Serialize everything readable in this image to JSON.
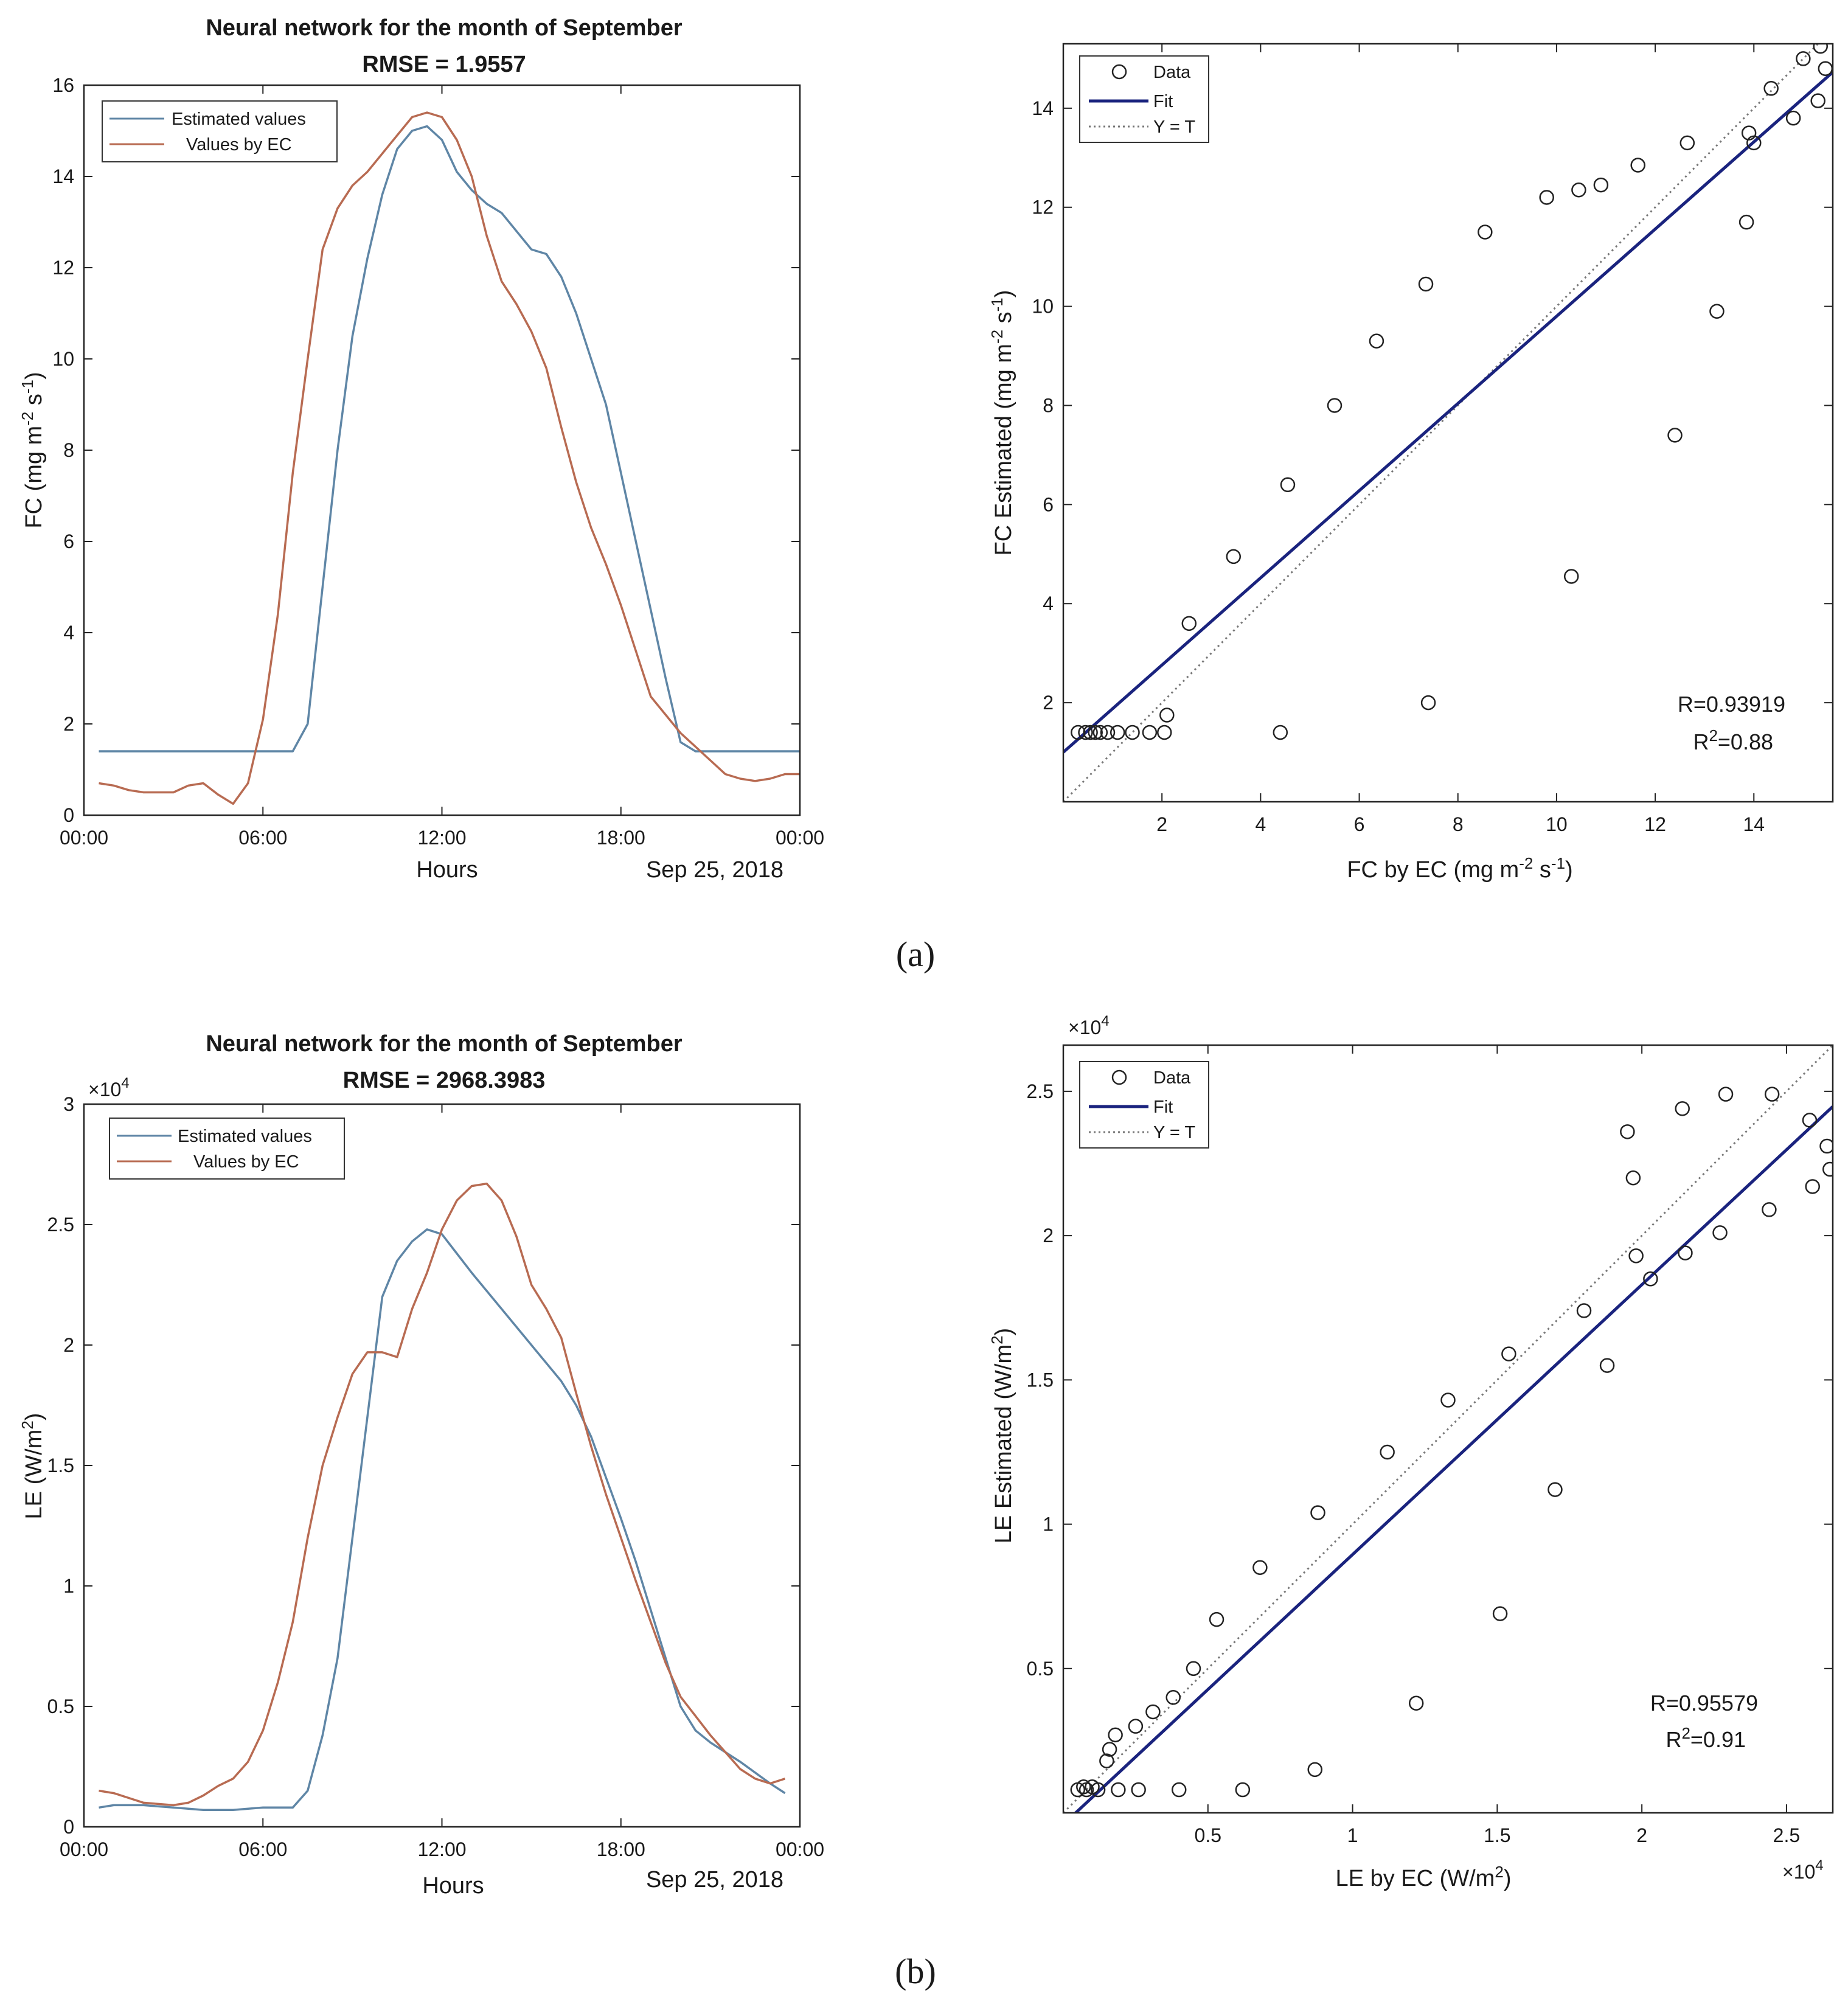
{
  "colors": {
    "estimated": "#5f86a6",
    "ec": "#b86b52",
    "fit": "#1a237e",
    "identity": "#777777",
    "axis": "#222222"
  },
  "panels": {
    "a": "(a)",
    "b": "(b)"
  },
  "chart_data": [
    {
      "id": "a-time",
      "type": "line",
      "title": "Neural network for the month of September",
      "subtitle": "RMSE = 1.9557",
      "xlabel": "Hours",
      "xlabel_note": "Sep 25, 2018",
      "ylabel": "FC (mg m",
      "ylabel_parts": {
        "pre": "FC (mg m",
        "sup1": "-2",
        "mid": " s",
        "sup2": "-1",
        "post": ")"
      },
      "xlim": [
        0,
        24
      ],
      "ylim": [
        0,
        16
      ],
      "x_ticks": [
        0,
        6,
        12,
        18,
        24
      ],
      "x_tick_labels": [
        "00:00",
        "06:00",
        "12:00",
        "18:00",
        "00:00"
      ],
      "y_ticks": [
        0,
        2,
        4,
        6,
        8,
        10,
        12,
        14,
        16
      ],
      "y_tick_labels": [
        "0",
        "2",
        "4",
        "6",
        "8",
        "10",
        "12",
        "14",
        "16"
      ],
      "legend": {
        "position": "top-left",
        "entries": [
          "Estimated values",
          "Values by EC"
        ]
      },
      "series": [
        {
          "name": "Estimated values",
          "color_key": "estimated",
          "x": [
            0.5,
            6.0,
            7.0,
            7.5,
            8.0,
            8.5,
            9.0,
            9.5,
            10.0,
            10.5,
            11.0,
            11.5,
            12.0,
            12.5,
            13.0,
            13.5,
            14.0,
            14.5,
            15.0,
            15.5,
            16.0,
            16.5,
            17.0,
            17.5,
            18.0,
            18.5,
            19.0,
            19.5,
            20.0,
            20.5,
            21.0,
            24.0
          ],
          "y": [
            1.4,
            1.4,
            1.4,
            2.0,
            5.0,
            8.0,
            10.5,
            12.2,
            13.6,
            14.6,
            15.0,
            15.1,
            14.8,
            14.1,
            13.7,
            13.4,
            13.2,
            12.8,
            12.4,
            12.3,
            11.8,
            11.0,
            10.0,
            9.0,
            7.5,
            6.0,
            4.5,
            3.0,
            1.6,
            1.4,
            1.4,
            1.4
          ]
        },
        {
          "name": "Values by EC",
          "color_key": "ec",
          "x": [
            0.5,
            1.0,
            1.5,
            2.0,
            2.5,
            3.0,
            3.5,
            4.0,
            4.5,
            5.0,
            5.5,
            6.0,
            6.5,
            7.0,
            7.5,
            8.0,
            8.5,
            9.0,
            9.5,
            10.0,
            10.5,
            11.0,
            11.5,
            12.0,
            12.5,
            13.0,
            13.5,
            14.0,
            14.5,
            15.0,
            15.5,
            16.0,
            16.5,
            17.0,
            17.5,
            18.0,
            18.5,
            19.0,
            19.5,
            20.0,
            20.5,
            21.0,
            21.5,
            22.0,
            22.5,
            23.0,
            23.5,
            24.0
          ],
          "y": [
            0.7,
            0.65,
            0.55,
            0.5,
            0.5,
            0.5,
            0.65,
            0.7,
            0.45,
            0.25,
            0.7,
            2.1,
            4.4,
            7.5,
            10.0,
            12.4,
            13.3,
            13.8,
            14.1,
            14.5,
            14.9,
            15.3,
            15.4,
            15.3,
            14.8,
            14.0,
            12.7,
            11.7,
            11.2,
            10.6,
            9.8,
            8.5,
            7.3,
            6.3,
            5.5,
            4.6,
            3.6,
            2.6,
            2.2,
            1.8,
            1.5,
            1.2,
            0.9,
            0.8,
            0.75,
            0.8,
            0.9,
            0.9
          ]
        }
      ]
    },
    {
      "id": "a-scatter",
      "type": "scatter",
      "xlabel": "FC by EC",
      "xlabel_parts": {
        "pre": "FC by EC  (mg m",
        "sup1": "-2",
        "mid": " s",
        "sup2": "-1",
        "post": ")"
      },
      "ylabel": "FC Estimated",
      "ylabel_parts": {
        "pre": "FC Estimated  (mg m",
        "sup1": "-2",
        "mid": " s",
        "sup2": "-1",
        "post": ")"
      },
      "xlim": [
        0.0,
        15.6
      ],
      "ylim": [
        0.0,
        15.3
      ],
      "x_ticks": [
        2,
        4,
        6,
        8,
        10,
        12,
        14
      ],
      "x_tick_labels": [
        "2",
        "4",
        "6",
        "8",
        "10",
        "12",
        "14"
      ],
      "y_ticks": [
        2,
        4,
        6,
        8,
        10,
        12,
        14
      ],
      "y_tick_labels": [
        "2",
        "4",
        "6",
        "8",
        "10",
        "12",
        "14"
      ],
      "legend": {
        "position": "top-left",
        "entries": [
          "Data",
          "Fit",
          "Y = T"
        ]
      },
      "annotation": {
        "r": "R=0.93919",
        "r2_pre": "R",
        "r2_sup": "2",
        "r2_post": "=0.88"
      },
      "fit": {
        "slope": 0.88,
        "intercept": 1.0
      },
      "identity": [
        0.0,
        15.6
      ],
      "points": [
        [
          0.3,
          1.4
        ],
        [
          0.45,
          1.4
        ],
        [
          0.55,
          1.4
        ],
        [
          0.65,
          1.4
        ],
        [
          0.75,
          1.4
        ],
        [
          0.9,
          1.4
        ],
        [
          1.1,
          1.4
        ],
        [
          1.4,
          1.4
        ],
        [
          1.75,
          1.4
        ],
        [
          2.05,
          1.4
        ],
        [
          2.1,
          1.75
        ],
        [
          2.55,
          3.6
        ],
        [
          3.45,
          4.95
        ],
        [
          4.4,
          1.4
        ],
        [
          4.55,
          6.4
        ],
        [
          5.5,
          8.0
        ],
        [
          6.35,
          9.3
        ],
        [
          7.35,
          10.45
        ],
        [
          7.4,
          2.0
        ],
        [
          8.55,
          11.5
        ],
        [
          9.8,
          12.2
        ],
        [
          10.3,
          4.55
        ],
        [
          10.45,
          12.35
        ],
        [
          10.9,
          12.45
        ],
        [
          11.65,
          12.85
        ],
        [
          12.4,
          7.4
        ],
        [
          12.65,
          13.3
        ],
        [
          13.25,
          9.9
        ],
        [
          13.85,
          11.7
        ],
        [
          13.9,
          13.5
        ],
        [
          14.0,
          13.3
        ],
        [
          14.35,
          14.4
        ],
        [
          14.8,
          13.8
        ],
        [
          15.0,
          15.0
        ],
        [
          15.3,
          14.15
        ],
        [
          15.35,
          15.25
        ],
        [
          15.45,
          14.8
        ]
      ]
    },
    {
      "id": "b-time",
      "type": "line",
      "title": "Neural network for the month of September",
      "subtitle": "RMSE = 2968.3983",
      "xlabel": "Hours",
      "xlabel_note": "Sep 25, 2018",
      "ylabel": "LE (W/m",
      "ylabel_parts": {
        "pre": "LE (W/m",
        "sup1": "2",
        "post": ")"
      },
      "y_exponent": {
        "base": "×10",
        "sup": "4"
      },
      "xlim": [
        0,
        24
      ],
      "ylim": [
        0,
        3.0
      ],
      "x_ticks": [
        0,
        6,
        12,
        18,
        24
      ],
      "x_tick_labels": [
        "00:00",
        "06:00",
        "12:00",
        "18:00",
        "00:00"
      ],
      "y_ticks": [
        0,
        0.5,
        1.0,
        1.5,
        2.0,
        2.5,
        3.0
      ],
      "y_tick_labels": [
        "0",
        "0.5",
        "1",
        "1.5",
        "2",
        "2.5",
        "3"
      ],
      "legend": {
        "position": "top-left",
        "entries": [
          "Estimated values",
          "Values by EC"
        ]
      },
      "series": [
        {
          "name": "Estimated values",
          "color_key": "estimated",
          "x": [
            0.5,
            1.0,
            2.0,
            3.0,
            4.0,
            5.0,
            6.0,
            7.0,
            7.5,
            8.0,
            8.5,
            9.0,
            9.5,
            10.0,
            10.5,
            11.0,
            11.5,
            12.0,
            12.5,
            13.0,
            14.0,
            15.0,
            16.0,
            16.5,
            17.0,
            17.5,
            18.0,
            18.5,
            19.0,
            19.5,
            20.0,
            20.5,
            21.0,
            22.0,
            23.0,
            23.5
          ],
          "y": [
            0.08,
            0.09,
            0.09,
            0.08,
            0.07,
            0.07,
            0.08,
            0.08,
            0.15,
            0.38,
            0.7,
            1.2,
            1.7,
            2.2,
            2.35,
            2.43,
            2.48,
            2.46,
            2.38,
            2.3,
            2.15,
            2.0,
            1.85,
            1.75,
            1.62,
            1.45,
            1.28,
            1.1,
            0.9,
            0.7,
            0.5,
            0.4,
            0.35,
            0.27,
            0.18,
            0.14
          ]
        },
        {
          "name": "Values by EC",
          "color_key": "ec",
          "x": [
            0.5,
            1.0,
            1.5,
            2.0,
            3.0,
            3.5,
            4.0,
            4.5,
            5.0,
            5.5,
            6.0,
            6.5,
            7.0,
            7.5,
            8.0,
            8.5,
            9.0,
            9.5,
            10.0,
            10.5,
            11.0,
            11.5,
            12.0,
            12.5,
            13.0,
            13.5,
            14.0,
            14.5,
            15.0,
            15.5,
            16.0,
            16.5,
            17.0,
            17.5,
            18.0,
            18.5,
            19.0,
            19.5,
            20.0,
            20.5,
            21.0,
            21.5,
            22.0,
            22.5,
            23.0,
            23.5
          ],
          "y": [
            0.15,
            0.14,
            0.12,
            0.1,
            0.09,
            0.1,
            0.13,
            0.17,
            0.2,
            0.27,
            0.4,
            0.6,
            0.85,
            1.2,
            1.5,
            1.7,
            1.88,
            1.97,
            1.97,
            1.95,
            2.15,
            2.3,
            2.48,
            2.6,
            2.66,
            2.67,
            2.6,
            2.45,
            2.25,
            2.15,
            2.03,
            1.8,
            1.58,
            1.38,
            1.2,
            1.02,
            0.85,
            0.68,
            0.54,
            0.46,
            0.38,
            0.31,
            0.24,
            0.2,
            0.18,
            0.2
          ]
        }
      ]
    },
    {
      "id": "b-scatter",
      "type": "scatter",
      "xlabel": "LE by EC",
      "xlabel_parts": {
        "pre": "LE by EC  (W/m",
        "sup1": "2",
        "post": ")"
      },
      "ylabel": "LE Estimated",
      "ylabel_parts": {
        "pre": "LE Estimated  (W/m",
        "sup1": "2",
        "post": ")"
      },
      "x_exponent": {
        "base": "×10",
        "sup": "4"
      },
      "y_exponent": {
        "base": "×10",
        "sup": "4"
      },
      "xlim": [
        0.0,
        2.66
      ],
      "ylim": [
        0.0,
        2.66
      ],
      "x_ticks": [
        0.5,
        1.0,
        1.5,
        2.0,
        2.5
      ],
      "x_tick_labels": [
        "0.5",
        "1",
        "1.5",
        "2",
        "2.5"
      ],
      "y_ticks": [
        0.5,
        1.0,
        1.5,
        2.0,
        2.5
      ],
      "y_tick_labels": [
        "0.5",
        "1",
        "1.5",
        "2",
        "2.5"
      ],
      "legend": {
        "position": "top-left",
        "entries": [
          "Data",
          "Fit",
          "Y = T"
        ]
      },
      "annotation": {
        "r": "R=0.95579",
        "r2_pre": "R",
        "r2_sup": "2",
        "r2_post": "=0.91"
      },
      "fit": {
        "slope": 0.935,
        "intercept": -0.04
      },
      "identity": [
        0.0,
        2.66
      ],
      "points": [
        [
          0.05,
          0.08
        ],
        [
          0.07,
          0.09
        ],
        [
          0.08,
          0.08
        ],
        [
          0.1,
          0.09
        ],
        [
          0.12,
          0.08
        ],
        [
          0.15,
          0.18
        ],
        [
          0.16,
          0.22
        ],
        [
          0.18,
          0.27
        ],
        [
          0.19,
          0.08
        ],
        [
          0.25,
          0.3
        ],
        [
          0.26,
          0.08
        ],
        [
          0.31,
          0.35
        ],
        [
          0.38,
          0.4
        ],
        [
          0.4,
          0.08
        ],
        [
          0.45,
          0.5
        ],
        [
          0.53,
          0.67
        ],
        [
          0.62,
          0.08
        ],
        [
          0.68,
          0.85
        ],
        [
          0.87,
          0.15
        ],
        [
          0.88,
          1.04
        ],
        [
          1.12,
          1.25
        ],
        [
          1.22,
          0.38
        ],
        [
          1.33,
          1.43
        ],
        [
          1.51,
          0.69
        ],
        [
          1.54,
          1.59
        ],
        [
          1.7,
          1.12
        ],
        [
          1.8,
          1.74
        ],
        [
          1.88,
          1.55
        ],
        [
          1.95,
          2.36
        ],
        [
          1.97,
          2.2
        ],
        [
          1.98,
          1.93
        ],
        [
          2.03,
          1.85
        ],
        [
          2.14,
          2.44
        ],
        [
          2.15,
          1.94
        ],
        [
          2.27,
          2.01
        ],
        [
          2.29,
          2.49
        ],
        [
          2.44,
          2.09
        ],
        [
          2.45,
          2.49
        ],
        [
          2.58,
          2.4
        ],
        [
          2.59,
          2.17
        ],
        [
          2.64,
          2.31
        ],
        [
          2.65,
          2.23
        ]
      ]
    }
  ]
}
